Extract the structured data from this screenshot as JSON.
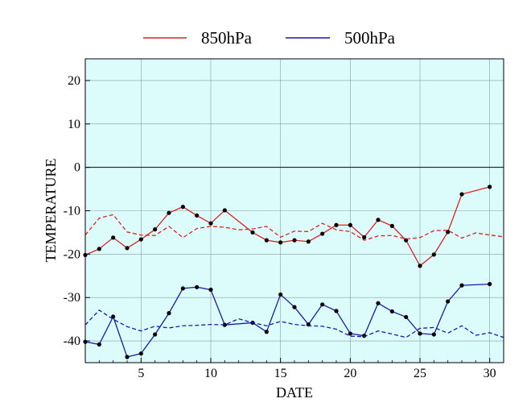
{
  "chart_data": {
    "type": "line",
    "xlabel": "DATE",
    "ylabel": "TEMPERATURE",
    "xlim": [
      1,
      31
    ],
    "ylim": [
      -45,
      25
    ],
    "xticks": [
      5,
      10,
      15,
      20,
      25,
      30
    ],
    "yticks": [
      -40,
      -30,
      -20,
      -10,
      0,
      10,
      20
    ],
    "grid": true,
    "legend_position": "top-center",
    "background_color": "#dcfcfc",
    "series": [
      {
        "name": "850hPa",
        "color": "#e02020",
        "style": "solid",
        "markers": true,
        "x": [
          1,
          2,
          3,
          4,
          5,
          6,
          7,
          8,
          9,
          10,
          11,
          13,
          14,
          15,
          16,
          17,
          18,
          19,
          20,
          21,
          22,
          23,
          24,
          25,
          26,
          27,
          28,
          30
        ],
        "y": [
          -20.2,
          -18.8,
          -16.2,
          -18.6,
          -16.6,
          -14.3,
          -10.5,
          -9.1,
          -11.1,
          -12.9,
          -9.9,
          -15.0,
          -16.8,
          -17.3,
          -16.8,
          -17.1,
          -15.3,
          -13.3,
          -13.3,
          -16.1,
          -12.1,
          -13.5,
          -16.8,
          -22.7,
          -20.1,
          -14.9,
          -6.2,
          -4.5
        ]
      },
      {
        "name": "500hPa",
        "color": "#1a1aaa",
        "style": "solid",
        "markers": true,
        "x": [
          1,
          2,
          3,
          4,
          5,
          6,
          7,
          8,
          9,
          10,
          11,
          13,
          14,
          15,
          16,
          17,
          18,
          19,
          20,
          21,
          22,
          23,
          24,
          25,
          26,
          27,
          28,
          30
        ],
        "y": [
          -40.2,
          -40.8,
          -34.4,
          -43.7,
          -42.9,
          -38.5,
          -33.6,
          -27.9,
          -27.6,
          -28.2,
          -36.3,
          -35.8,
          -37.9,
          -29.3,
          -32.2,
          -36.2,
          -31.6,
          -33.1,
          -38.3,
          -38.8,
          -31.3,
          -33.2,
          -34.5,
          -38.3,
          -38.5,
          -30.9,
          -27.2,
          -26.9
        ]
      },
      {
        "name": "",
        "color": "#e02020",
        "style": "dashed",
        "markers": false,
        "x": [
          1,
          2,
          3,
          4,
          5,
          6,
          7,
          8,
          9,
          10,
          11,
          12,
          13,
          14,
          15,
          16,
          17,
          18,
          19,
          20,
          21,
          22,
          23,
          24,
          25,
          26,
          27,
          28,
          29,
          30,
          31
        ],
        "y": [
          -15.6,
          -11.7,
          -10.9,
          -14.9,
          -15.6,
          -15.7,
          -13.6,
          -16.2,
          -14.1,
          -13.6,
          -13.8,
          -14.4,
          -14.2,
          -13.6,
          -16.1,
          -14.7,
          -14.8,
          -12.9,
          -14.4,
          -14.8,
          -16.8,
          -15.8,
          -15.7,
          -16.5,
          -16.2,
          -14.6,
          -14.5,
          -16.3,
          -15.1,
          -15.6,
          -16.0
        ]
      },
      {
        "name": "",
        "color": "#1a1aaa",
        "style": "dashed",
        "markers": false,
        "x": [
          1,
          2,
          3,
          4,
          5,
          6,
          7,
          8,
          9,
          10,
          11,
          12,
          13,
          14,
          15,
          16,
          17,
          18,
          19,
          20,
          21,
          22,
          23,
          24,
          25,
          26,
          27,
          28,
          29,
          30,
          31
        ],
        "y": [
          -36.3,
          -32.9,
          -35.0,
          -36.7,
          -37.7,
          -36.6,
          -37.0,
          -36.5,
          -36.4,
          -36.2,
          -36.3,
          -34.9,
          -35.8,
          -36.5,
          -35.5,
          -36.2,
          -36.5,
          -36.6,
          -37.3,
          -38.9,
          -39.0,
          -37.7,
          -38.4,
          -39.2,
          -37.1,
          -36.9,
          -38.2,
          -36.5,
          -38.7,
          -38.1,
          -39.2
        ]
      }
    ]
  }
}
